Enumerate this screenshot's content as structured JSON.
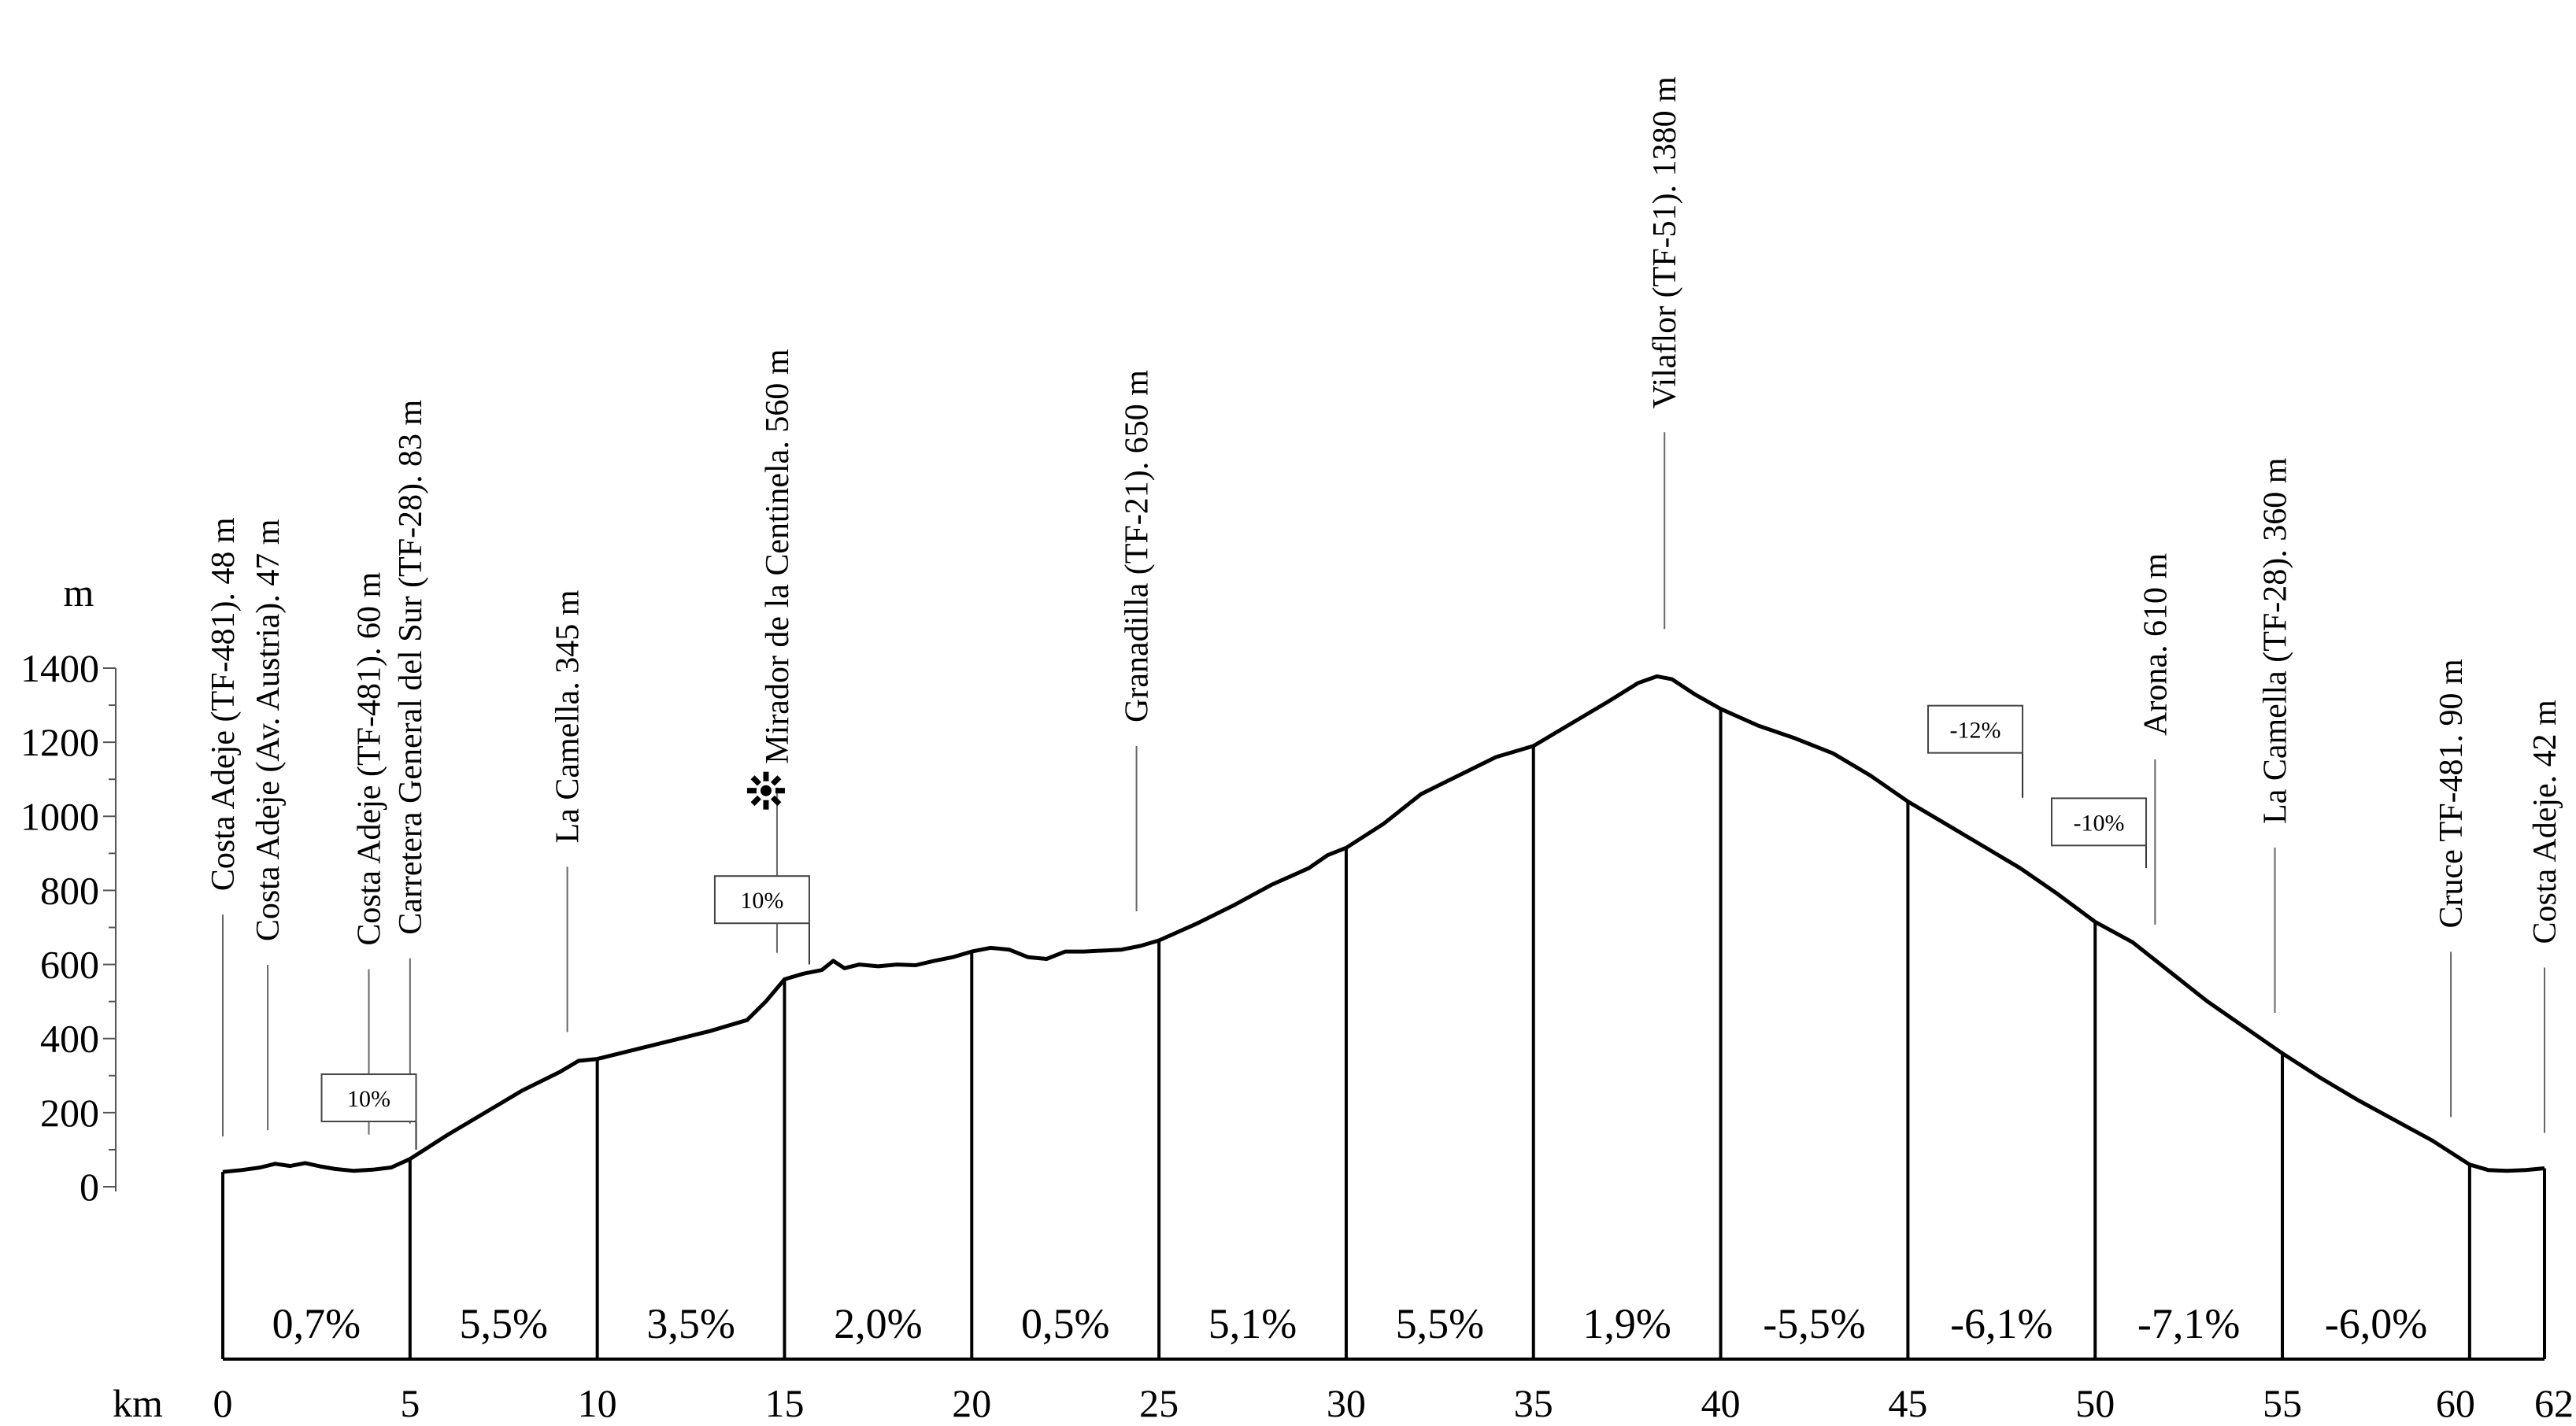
{
  "chart_data": {
    "type": "line",
    "subtype": "elevation-profile",
    "xlabel": "km",
    "ylabel": "m",
    "xlim": [
      0,
      62
    ],
    "ylim": [
      0,
      1400
    ],
    "x_ticks": [
      "0",
      "5",
      "10",
      "15",
      "20",
      "25",
      "30",
      "35",
      "40",
      "45",
      "50",
      "55",
      "60",
      "62"
    ],
    "y_ticks": [
      "0",
      "200",
      "400",
      "600",
      "800",
      "1000",
      "1200",
      "1400"
    ],
    "profile": [
      [
        0,
        40
      ],
      [
        0.5,
        45
      ],
      [
        1,
        52
      ],
      [
        1.4,
        62
      ],
      [
        1.8,
        56
      ],
      [
        2.2,
        64
      ],
      [
        2.6,
        55
      ],
      [
        3,
        48
      ],
      [
        3.5,
        43
      ],
      [
        4,
        46
      ],
      [
        4.5,
        52
      ],
      [
        5,
        75
      ],
      [
        6,
        140
      ],
      [
        7,
        200
      ],
      [
        8,
        260
      ],
      [
        9,
        310
      ],
      [
        9.5,
        340
      ],
      [
        10,
        345
      ],
      [
        11,
        370
      ],
      [
        12,
        395
      ],
      [
        13,
        420
      ],
      [
        14,
        450
      ],
      [
        14.5,
        500
      ],
      [
        15,
        560
      ],
      [
        15.5,
        575
      ],
      [
        16,
        585
      ],
      [
        16.3,
        610
      ],
      [
        16.6,
        590
      ],
      [
        17,
        600
      ],
      [
        17.5,
        595
      ],
      [
        18,
        600
      ],
      [
        18.5,
        598
      ],
      [
        19,
        610
      ],
      [
        19.5,
        620
      ],
      [
        20,
        635
      ],
      [
        20.5,
        645
      ],
      [
        21,
        640
      ],
      [
        21.5,
        620
      ],
      [
        22,
        615
      ],
      [
        22.5,
        635
      ],
      [
        23,
        635
      ],
      [
        24,
        640
      ],
      [
        24.5,
        650
      ],
      [
        25,
        665
      ],
      [
        26,
        710
      ],
      [
        27,
        760
      ],
      [
        28,
        815
      ],
      [
        29,
        860
      ],
      [
        29.5,
        895
      ],
      [
        30,
        915
      ],
      [
        31,
        980
      ],
      [
        32,
        1060
      ],
      [
        33,
        1110
      ],
      [
        34,
        1160
      ],
      [
        35,
        1190
      ],
      [
        36,
        1250
      ],
      [
        37,
        1310
      ],
      [
        37.8,
        1360
      ],
      [
        38.3,
        1378
      ],
      [
        38.7,
        1370
      ],
      [
        39.3,
        1330
      ],
      [
        40,
        1290
      ],
      [
        41,
        1245
      ],
      [
        42,
        1210
      ],
      [
        43,
        1170
      ],
      [
        44,
        1110
      ],
      [
        45,
        1040
      ],
      [
        46,
        980
      ],
      [
        47,
        920
      ],
      [
        48,
        860
      ],
      [
        49,
        790
      ],
      [
        50,
        715
      ],
      [
        51,
        660
      ],
      [
        52,
        580
      ],
      [
        53,
        500
      ],
      [
        54,
        430
      ],
      [
        55,
        360
      ],
      [
        56,
        295
      ],
      [
        57,
        235
      ],
      [
        58,
        180
      ],
      [
        59,
        125
      ],
      [
        60,
        60
      ],
      [
        60.5,
        45
      ],
      [
        61,
        43
      ],
      [
        61.5,
        45
      ],
      [
        62,
        50
      ]
    ],
    "segment_boundaries": [
      5,
      10,
      15,
      20,
      25,
      30,
      35,
      40,
      45,
      50,
      55,
      60
    ],
    "segment_grades": [
      {
        "from": 0,
        "to": 5,
        "label": "0,7%"
      },
      {
        "from": 5,
        "to": 10,
        "label": "5,5%"
      },
      {
        "from": 10,
        "to": 15,
        "label": "3,5%"
      },
      {
        "from": 15,
        "to": 20,
        "label": "2,0%"
      },
      {
        "from": 20,
        "to": 25,
        "label": "0,5%"
      },
      {
        "from": 25,
        "to": 30,
        "label": "5,1%"
      },
      {
        "from": 30,
        "to": 35,
        "label": "5,5%"
      },
      {
        "from": 35,
        "to": 40,
        "label": "1,9%"
      },
      {
        "from": 40,
        "to": 45,
        "label": "-5,5%"
      },
      {
        "from": 45,
        "to": 50,
        "label": "-6,1%"
      },
      {
        "from": 50,
        "to": 55,
        "label": "-7,1%"
      },
      {
        "from": 55,
        "to": 60,
        "label": "-6,0%"
      }
    ],
    "waypoints": [
      {
        "km": 0,
        "label": "Costa Adeje (TF-481). 48 m",
        "elevation": 48
      },
      {
        "km": 1.2,
        "label": "Costa Adeje (Av. Austria). 47 m",
        "elevation": 47
      },
      {
        "km": 3.9,
        "label": "Costa Adeje (TF-481). 60 m",
        "elevation": 60
      },
      {
        "km": 5,
        "label": "Carretera General del Sur (TF-28). 83 m",
        "elevation": 83
      },
      {
        "km": 9.2,
        "label": "La Camella. 345 m",
        "elevation": 345
      },
      {
        "km": 14.8,
        "label": "Mirador de la Centinela. 560 m",
        "elevation": 560,
        "icon": "viewpoint-icon"
      },
      {
        "km": 24.4,
        "label": "Granadilla (TF-21). 650 m",
        "elevation": 650
      },
      {
        "km": 38.5,
        "label": "Vilaflor (TF-51). 1380 m",
        "elevation": 1380
      },
      {
        "km": 51.6,
        "label": "Arona. 610 m",
        "elevation": 610
      },
      {
        "km": 54.8,
        "label": "La Camella (TF-28). 360 m",
        "elevation": 360
      },
      {
        "km": 59.5,
        "label": "Cruce TF-481. 90 m",
        "elevation": 90
      },
      {
        "km": 62,
        "label": "Costa Adeje. 42 m",
        "elevation": 42
      }
    ],
    "steep_markers": [
      {
        "km": 3.9,
        "label": "10%",
        "box_elevation": 240,
        "pointer_to": 100
      },
      {
        "km": 14.4,
        "label": "10%",
        "box_elevation": 775,
        "pointer_to": 600
      },
      {
        "km": 46.8,
        "label": "-12%",
        "box_elevation": 1235,
        "pointer_to": 1050
      },
      {
        "km": 50.1,
        "label": "-10%",
        "box_elevation": 985,
        "pointer_to": 860
      }
    ]
  }
}
